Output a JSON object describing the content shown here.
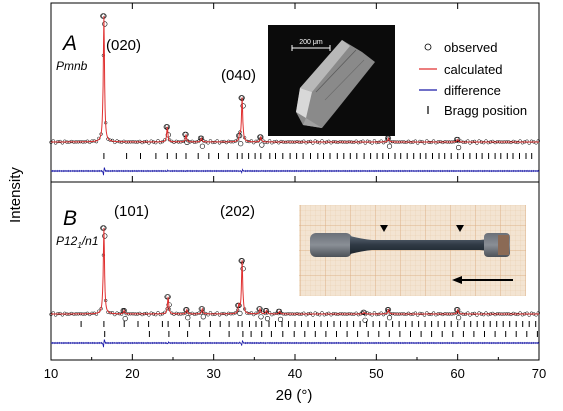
{
  "chart_data": {
    "type": "line",
    "xlabel_main": "2θ (°)",
    "ylabel": "Intensity",
    "xlim": [
      10,
      70
    ],
    "xticks": [
      10,
      20,
      30,
      40,
      50,
      60,
      70
    ],
    "legend": {
      "placement": "top-right of panel A",
      "entries": [
        {
          "label": "observed",
          "marker": "circle",
          "color": "#000000"
        },
        {
          "label": "calculated",
          "marker": "line",
          "color": "#e03030"
        },
        {
          "label": "difference",
          "marker": "line",
          "color": "#1a1aa8"
        },
        {
          "label": "Bragg position",
          "marker": "tick",
          "color": "#000000"
        }
      ]
    },
    "panels": [
      {
        "letter": "A",
        "space_group": "Pmnb",
        "annotations": [
          {
            "text": "(020)",
            "x": 16.5
          },
          {
            "text": "(040)",
            "x": 33.5
          }
        ],
        "inset_scalebar": "200 μm",
        "peaks": [
          {
            "x": 16.5,
            "height": 1.0
          },
          {
            "x": 24.3,
            "height": 0.12
          },
          {
            "x": 26.6,
            "height": 0.06
          },
          {
            "x": 28.5,
            "height": 0.03
          },
          {
            "x": 33.5,
            "height": 0.35
          },
          {
            "x": 33.2,
            "height": 0.05
          },
          {
            "x": 35.8,
            "height": 0.04
          },
          {
            "x": 51.5,
            "height": 0.03
          },
          {
            "x": 60.0,
            "height": 0.02
          }
        ],
        "bragg_positions": [
          16.5,
          19.3,
          21.0,
          22.9,
          24.3,
          25.4,
          26.6,
          28.1,
          29.4,
          30.6,
          31.8,
          32.9,
          33.5,
          34.3,
          35.1,
          35.8,
          36.9,
          37.6,
          38.5,
          39.4,
          40.2,
          41.0,
          41.9,
          42.8,
          43.5,
          44.3,
          45.2,
          46.0,
          46.8,
          47.6,
          48.5,
          49.3,
          50.1,
          50.8,
          51.5,
          52.3,
          53.0,
          53.8,
          54.6,
          55.4,
          56.1,
          56.9,
          57.7,
          58.4,
          59.2,
          60.0,
          60.7,
          61.5,
          62.3,
          63.0,
          63.8,
          64.6,
          65.3,
          66.1,
          66.8,
          67.6,
          68.4,
          69.1
        ]
      },
      {
        "letter": "B",
        "space_group_parts": {
          "base": "P12",
          "sub": "1",
          "rest": "/n1"
        },
        "annotations": [
          {
            "text": "(101)",
            "x": 19.0
          },
          {
            "text": "(202)",
            "x": 32.0
          }
        ],
        "peaks": [
          {
            "x": 16.5,
            "height": 1.0
          },
          {
            "x": 19.0,
            "height": 0.04
          },
          {
            "x": 24.4,
            "height": 0.2
          },
          {
            "x": 26.7,
            "height": 0.05
          },
          {
            "x": 28.6,
            "height": 0.06
          },
          {
            "x": 33.5,
            "height": 0.62
          },
          {
            "x": 33.1,
            "height": 0.1
          },
          {
            "x": 35.7,
            "height": 0.06
          },
          {
            "x": 36.5,
            "height": 0.04
          },
          {
            "x": 38.1,
            "height": 0.03
          },
          {
            "x": 48.5,
            "height": 0.02
          },
          {
            "x": 51.5,
            "height": 0.05
          },
          {
            "x": 60.0,
            "height": 0.05
          }
        ],
        "bragg_row1": [
          13.7,
          16.5,
          19.0,
          20.7,
          22.0,
          23.7,
          24.4,
          25.8,
          27.0,
          28.3,
          29.6,
          30.8,
          31.9,
          33.0,
          33.5,
          34.4,
          35.2,
          35.9,
          36.8,
          37.6,
          38.4,
          39.2,
          40.0,
          40.8,
          41.6,
          42.4,
          43.2,
          44.0,
          44.8,
          45.6,
          46.4,
          47.2,
          48.0,
          48.8,
          49.6,
          50.4,
          51.2,
          52.0,
          52.8,
          53.6,
          54.4,
          55.2,
          56.0,
          56.8,
          57.6,
          58.4,
          59.2,
          60.0,
          60.8,
          61.6,
          62.4,
          63.2,
          64.0,
          64.8,
          65.6,
          66.4,
          67.2,
          68.0,
          68.8,
          69.6
        ],
        "bragg_row2": [
          16.6,
          22.1,
          24.5,
          26.8,
          29.5,
          31.9,
          33.6,
          34.6,
          35.9,
          37.1,
          38.5,
          39.9,
          41.2,
          42.5,
          43.8,
          45.1,
          46.4,
          47.7,
          49.0,
          50.3,
          51.6,
          52.9,
          54.2,
          55.5,
          56.8,
          58.1,
          59.4,
          60.7,
          62.0,
          63.3,
          64.6,
          65.9,
          67.2,
          68.5,
          69.8
        ]
      }
    ],
    "inset_b_scale_arrow": true
  }
}
